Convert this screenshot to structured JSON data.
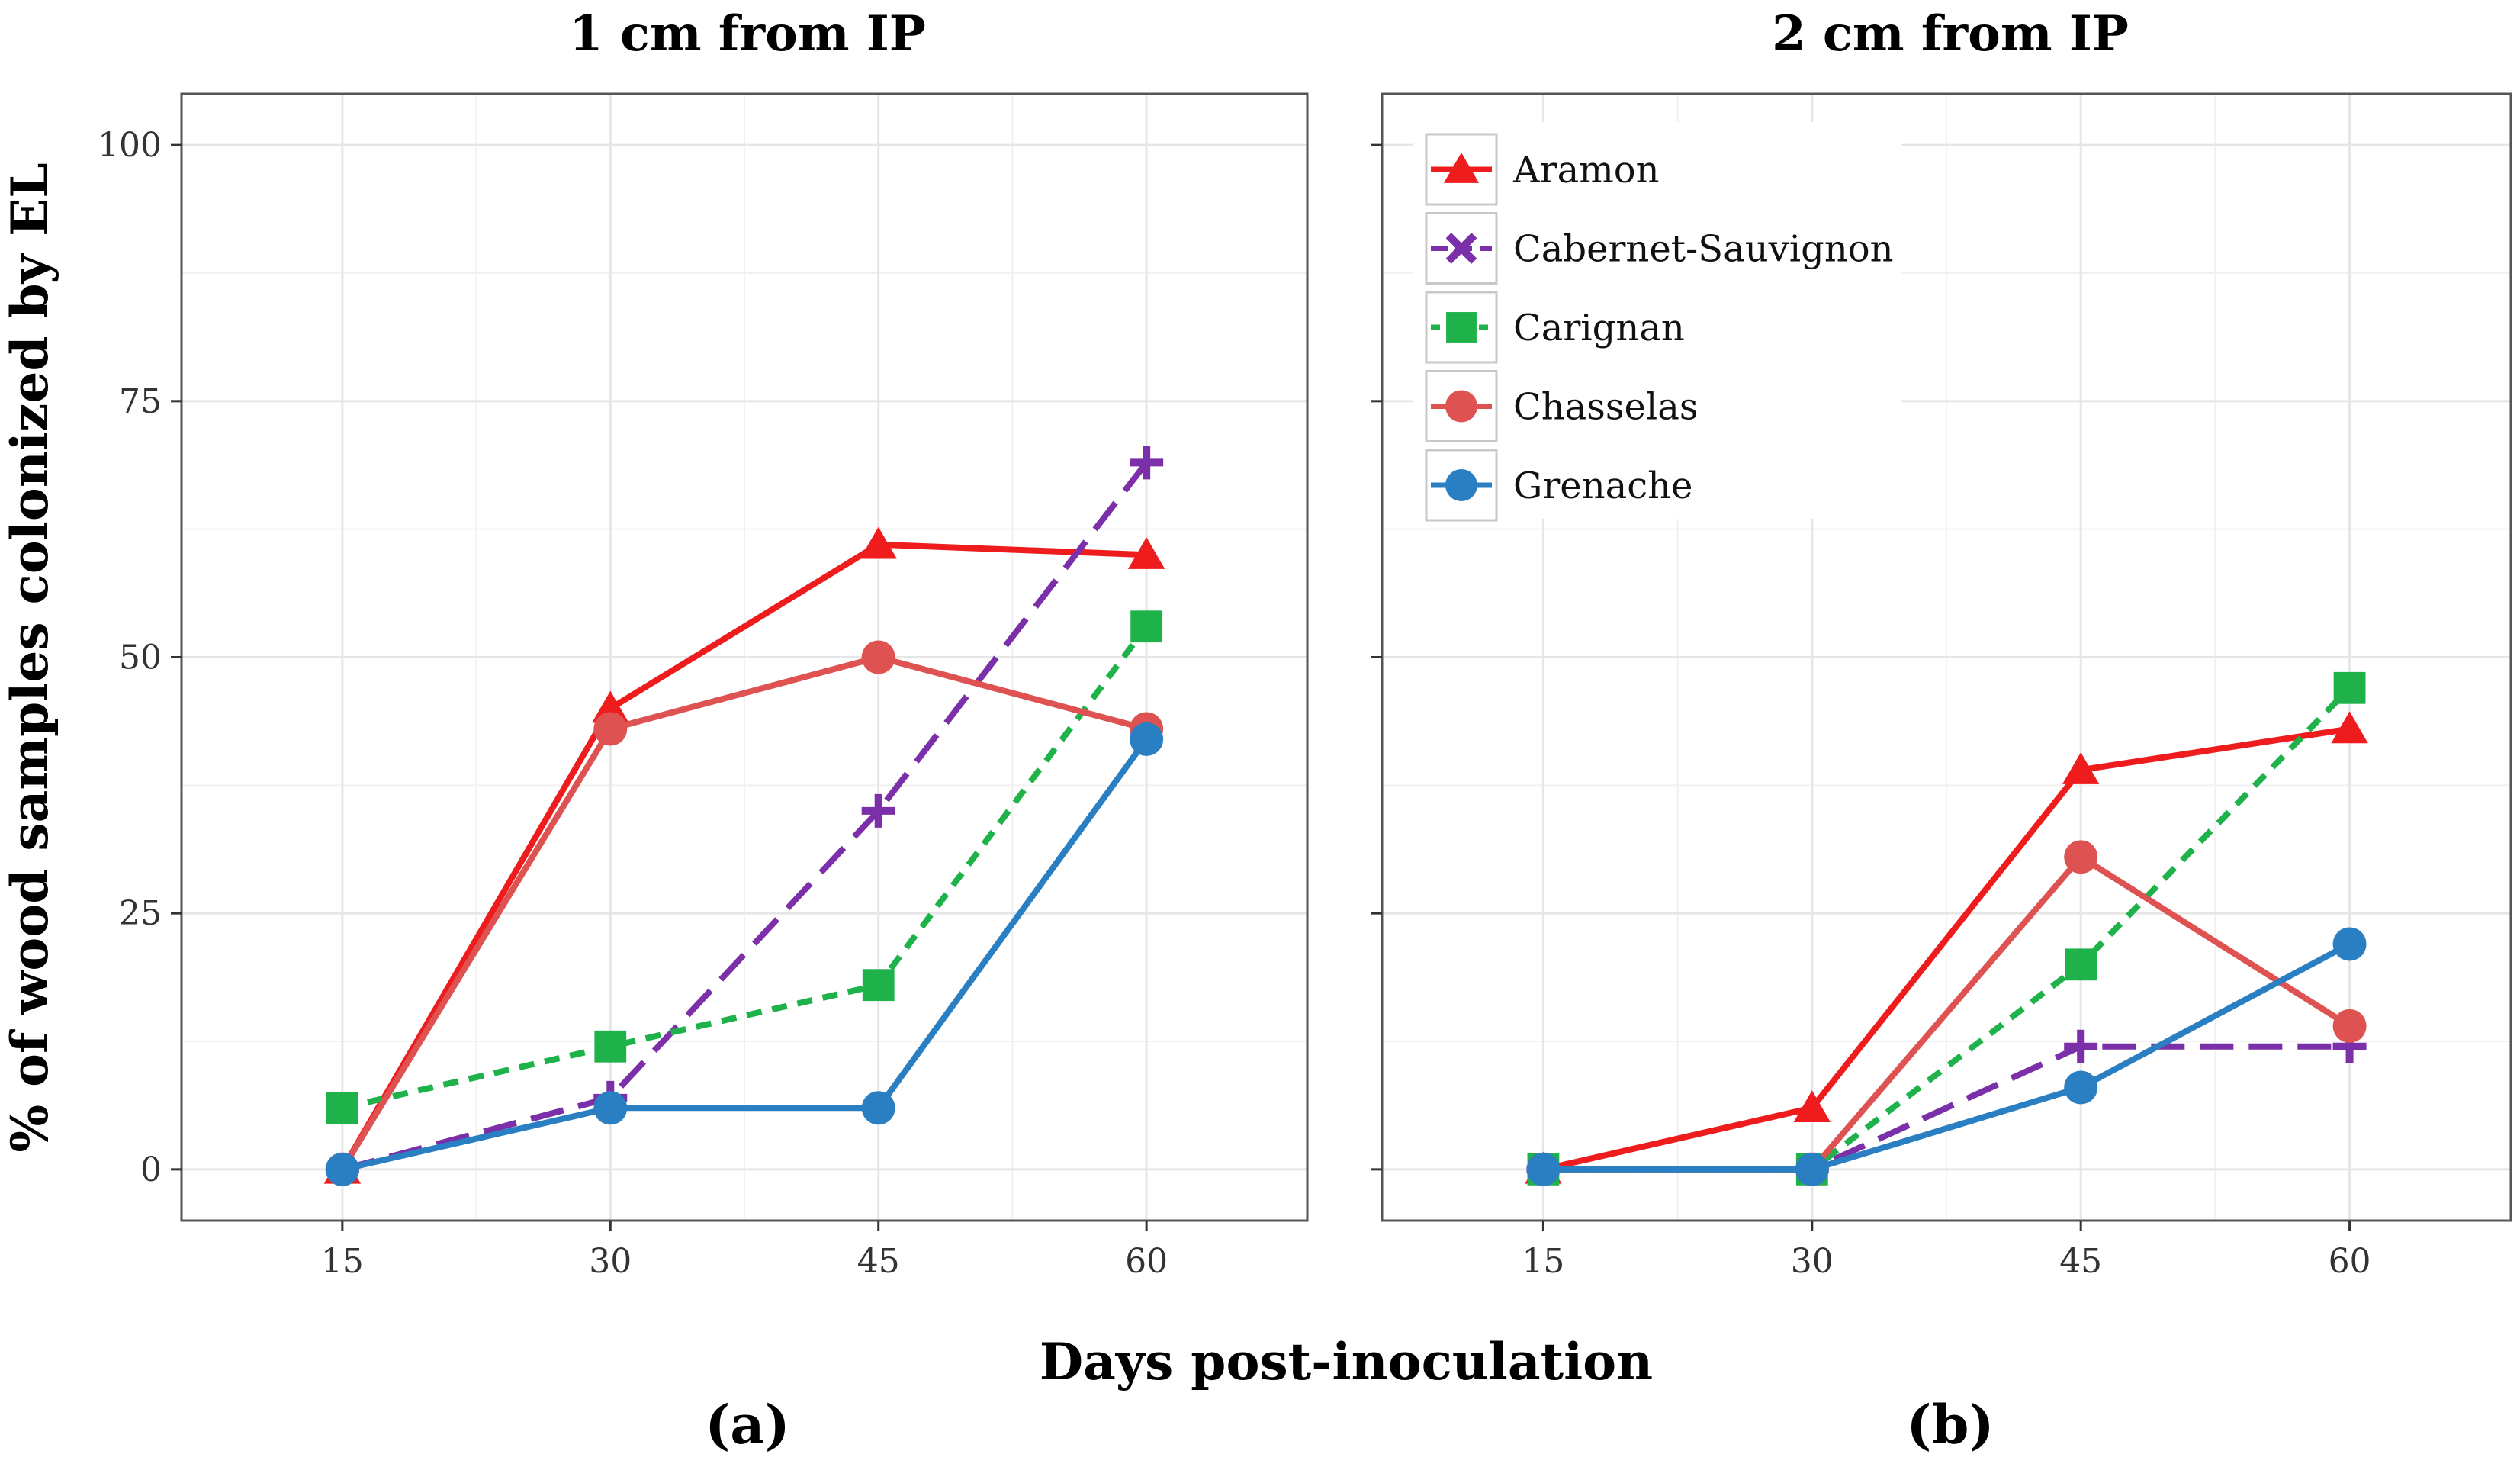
{
  "chart_data": [
    {
      "type": "line",
      "panel": "(a)",
      "title": "1 cm from IP",
      "xlabel": "Days post-inoculation",
      "ylabel": "% of wood samples colonized by EL",
      "x": [
        15,
        30,
        45,
        60
      ],
      "xticks": [
        "15",
        "30",
        "45",
        "60"
      ],
      "yticks": [
        "0",
        "25",
        "50",
        "75",
        "100"
      ],
      "xlim": [
        6,
        69
      ],
      "ylim": [
        -5,
        105
      ],
      "grid": true,
      "series": [
        {
          "name": "Aramon",
          "values": [
            0,
            45,
            61,
            60
          ],
          "color": "#ee1c1c",
          "marker": "triangle",
          "dash": "solid"
        },
        {
          "name": "Cabernet-Sauvignon",
          "values": [
            0,
            7,
            35,
            69
          ],
          "color": "#7b2fa8",
          "marker": "plus",
          "dash": "long"
        },
        {
          "name": "Carignan",
          "values": [
            6,
            12,
            18,
            53
          ],
          "color": "#1fb24a",
          "marker": "square",
          "dash": "short"
        },
        {
          "name": "Chasselas",
          "values": [
            0,
            43,
            50,
            43
          ],
          "color": "#de5252",
          "marker": "circle",
          "dash": "solid"
        },
        {
          "name": "Grenache",
          "values": [
            0,
            6,
            6,
            42
          ],
          "color": "#2a7fc2",
          "marker": "circle",
          "dash": "solid"
        }
      ]
    },
    {
      "type": "line",
      "panel": "(b)",
      "title": "2 cm from IP",
      "xlabel": "Days post-inoculation",
      "ylabel": "% of wood samples colonized by EL",
      "x": [
        15,
        30,
        45,
        60
      ],
      "xticks": [
        "15",
        "30",
        "45",
        "60"
      ],
      "yticks": [
        "0",
        "25",
        "50",
        "75",
        "100"
      ],
      "xlim": [
        6,
        69
      ],
      "ylim": [
        -5,
        105
      ],
      "grid": true,
      "series": [
        {
          "name": "Aramon",
          "values": [
            0,
            6,
            39,
            43
          ],
          "color": "#ee1c1c",
          "marker": "triangle",
          "dash": "solid"
        },
        {
          "name": "Cabernet-Sauvignon",
          "values": [
            0,
            0,
            12,
            12
          ],
          "color": "#7b2fa8",
          "marker": "plus",
          "dash": "long"
        },
        {
          "name": "Carignan",
          "values": [
            0,
            0,
            20,
            47
          ],
          "color": "#1fb24a",
          "marker": "square",
          "dash": "short"
        },
        {
          "name": "Chasselas",
          "values": [
            0,
            0,
            30.5,
            14
          ],
          "color": "#de5252",
          "marker": "circle",
          "dash": "solid"
        },
        {
          "name": "Grenache",
          "values": [
            0,
            0,
            8,
            22
          ],
          "color": "#2a7fc2",
          "marker": "circle",
          "dash": "solid"
        }
      ]
    }
  ],
  "legend": {
    "placement": "top-left of panel (b)",
    "entries": [
      {
        "label": "Aramon",
        "color": "#ee1c1c",
        "marker": "triangle",
        "dash": "solid",
        "legend_marker": "triangle"
      },
      {
        "label": "Cabernet-Sauvignon",
        "color": "#7b2fa8",
        "marker": "plus",
        "dash": "long",
        "legend_marker": "x"
      },
      {
        "label": "Carignan",
        "color": "#1fb24a",
        "marker": "square",
        "dash": "short",
        "legend_marker": "square"
      },
      {
        "label": "Chasselas",
        "color": "#de5252",
        "marker": "circle",
        "dash": "solid",
        "legend_marker": "circle"
      },
      {
        "label": "Grenache",
        "color": "#2a7fc2",
        "marker": "circle",
        "dash": "solid",
        "legend_marker": "circle"
      }
    ]
  },
  "shared": {
    "xlabel": "Days post-inoculation",
    "ylabel": "% of wood samples colonized by EL",
    "panel_labels": [
      "(a)",
      "(b)"
    ]
  },
  "colors": {
    "panel_border": "#555555",
    "grid": "#e6e6e6",
    "tick": "#333333"
  }
}
